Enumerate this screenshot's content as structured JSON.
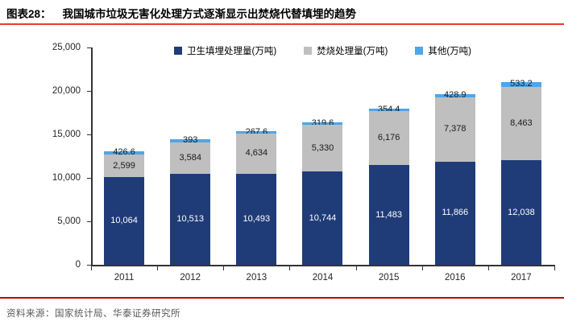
{
  "header": {
    "fig_label": "图表28：",
    "fig_title": "我国城市垃圾无害化处理方式逐渐显示出焚烧代替填埋的趋势"
  },
  "source": "资料来源：国家统计局、华泰证券研究所",
  "colors": {
    "landfill": "#1F3C78",
    "incineration": "#BFBFBF",
    "other": "#4EA6E8",
    "title_rule": "#E2402A",
    "source_rule": "#C00000",
    "axis": "#333333",
    "label_dark": "#1a1a1a",
    "label_light": "#ffffff"
  },
  "chart_data": {
    "type": "bar",
    "stacked": true,
    "title": "我国城市垃圾无害化处理方式逐渐显示出焚烧代替填埋的趋势",
    "xlabel": "",
    "ylabel": "",
    "ylim": [
      0,
      25000
    ],
    "grid": false,
    "legend_position": "top",
    "categories": [
      "2011",
      "2012",
      "2013",
      "2014",
      "2015",
      "2016",
      "2017"
    ],
    "yticks": [
      {
        "value": 0,
        "label": "0"
      },
      {
        "value": 5000,
        "label": "5,000"
      },
      {
        "value": 10000,
        "label": "10,000"
      },
      {
        "value": 15000,
        "label": "15,000"
      },
      {
        "value": 20000,
        "label": "20,000"
      },
      {
        "value": 25000,
        "label": "25,000"
      }
    ],
    "series": [
      {
        "name": "卫生填埋处理量(万吨)",
        "color_key": "landfill",
        "label_color_key": "label_light",
        "values": [
          10064,
          10513,
          10493,
          10744,
          11483,
          11866,
          12038
        ],
        "labels": [
          "10,064",
          "10,513",
          "10,493",
          "10,744",
          "11,483",
          "11,866",
          "12,038"
        ]
      },
      {
        "name": "焚烧处理量(万吨)",
        "color_key": "incineration",
        "label_color_key": "label_dark",
        "values": [
          2599,
          3584,
          4634,
          5330,
          6176,
          7378,
          8463
        ],
        "labels": [
          "2,599",
          "3,584",
          "4,634",
          "5,330",
          "6,176",
          "7,378",
          "8,463"
        ]
      },
      {
        "name": "其他(万吨)",
        "color_key": "other",
        "label_color_key": "label_dark",
        "values": [
          426.6,
          393,
          267.6,
          319.6,
          354.4,
          428.9,
          533.2
        ],
        "labels": [
          "426.6",
          "393",
          "267.6",
          "319.6",
          "354.4",
          "428.9",
          "533.2"
        ]
      }
    ]
  }
}
